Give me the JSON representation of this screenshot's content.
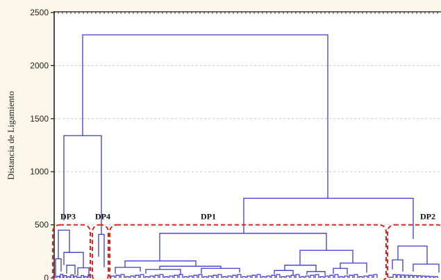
{
  "chart_data": {
    "type": "dendrogram",
    "title": "",
    "xlabel": "",
    "ylabel": "Distancia de Ligamiento",
    "ylim": [
      0,
      2500
    ],
    "yticks": [
      0,
      500,
      1000,
      1500,
      2000,
      2500
    ],
    "grid": "horizontal-dashed",
    "colors": {
      "tree": "#3a3ad6",
      "box": "#e02020",
      "grid": "#c9c9c9"
    },
    "merges": [
      {
        "name": "root",
        "height": 2290,
        "left": "DP3+DP4",
        "right": "DP1+DP2"
      },
      {
        "name": "DP3+DP4",
        "height": 1340,
        "left": "DP3",
        "right": "DP4"
      },
      {
        "name": "DP1+DP2",
        "height": 750,
        "left": "DP1",
        "right": "DP2"
      },
      {
        "name": "DP1",
        "height": 420,
        "left": "DP1-a",
        "right": "DP1-b"
      },
      {
        "name": "DP3",
        "height": 450
      },
      {
        "name": "DP4",
        "height": 410
      },
      {
        "name": "DP2",
        "height": 300
      }
    ],
    "clusters": [
      {
        "label": "DP3",
        "cut": 500
      },
      {
        "label": "DP4",
        "cut": 500
      },
      {
        "label": "DP1",
        "cut": 500
      },
      {
        "label": "DP2",
        "cut": 500
      }
    ]
  }
}
